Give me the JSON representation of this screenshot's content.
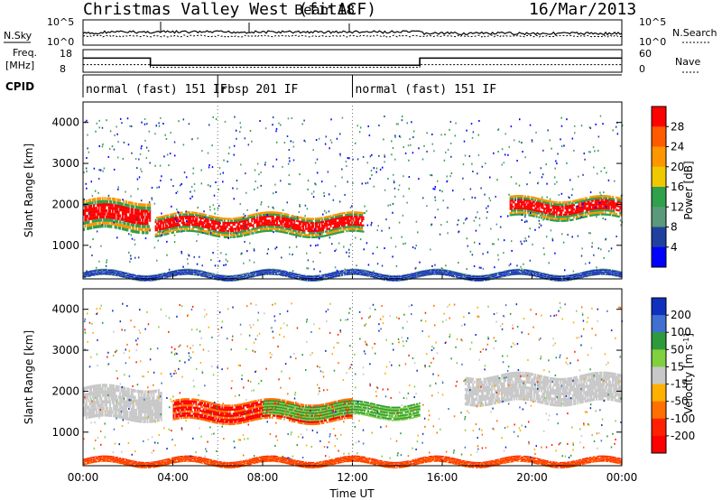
{
  "header": {
    "title": "Christmas Valley West (fitACF)",
    "beam": "Beam 18",
    "date": "16/Mar/2013"
  },
  "params": {
    "nsky_label": "N.Sky",
    "nsearch_label": "N.Search",
    "freq_label": "Freq.",
    "freq_unit": "[MHz]",
    "nave_label": "Nave",
    "cpid_label": "CPID",
    "noise_ticks": [
      "10^5",
      "10^0"
    ],
    "freq_ticks": [
      "18",
      "8"
    ],
    "nave_ticks": [
      "60",
      "0"
    ],
    "cpid_segments": [
      {
        "label": "normal (fast) 151 IF",
        "start": 0,
        "end": 6
      },
      {
        "label": "rbsp 201 IF",
        "start": 6,
        "end": 12
      },
      {
        "label": "normal (fast) 151 IF",
        "start": 12,
        "end": 24
      }
    ],
    "freq_series": [
      [
        0,
        14.5
      ],
      [
        3,
        14.5
      ],
      [
        3,
        11
      ],
      [
        15,
        11
      ],
      [
        15,
        14.5
      ],
      [
        24,
        14.5
      ]
    ],
    "nave_series": [
      [
        0,
        20
      ],
      [
        3,
        20
      ],
      [
        3,
        13
      ],
      [
        15,
        13
      ],
      [
        15,
        20
      ],
      [
        24,
        20
      ]
    ]
  },
  "chart_data": [
    {
      "type": "heatmap",
      "panel": "power",
      "xlabel": "",
      "ylabel": "Slant Range [km]",
      "xlim": [
        0,
        24
      ],
      "ylim": [
        180,
        4500
      ],
      "yticks": [
        "1000",
        "2000",
        "3000",
        "4000"
      ],
      "colorbar": {
        "label": "Power [dB]",
        "ticks": [
          "28",
          "24",
          "20",
          "16",
          "12",
          "8",
          "4"
        ],
        "colors": [
          "#ff0000",
          "#ff5a00",
          "#ff9600",
          "#f0c800",
          "#2fa04c",
          "#5a9a7a",
          "#2040a0",
          "#0000ff"
        ]
      },
      "blobs": [
        {
          "x": [
            0,
            3
          ],
          "y": [
            1350,
            2100
          ],
          "intensity": 26
        },
        {
          "x": [
            3.2,
            12.5
          ],
          "y": [
            1250,
            1750
          ],
          "intensity": 28
        },
        {
          "x": [
            19,
            24
          ],
          "y": [
            1650,
            2150
          ],
          "intensity": 24
        },
        {
          "x": [
            0,
            24
          ],
          "y": [
            200,
            350
          ],
          "intensity": 6
        }
      ]
    },
    {
      "type": "heatmap",
      "panel": "velocity",
      "xlabel": "Time UT",
      "ylabel": "Slant Range [km]",
      "xlim": [
        0,
        24
      ],
      "ylim": [
        180,
        4500
      ],
      "xticks": [
        "00:00",
        "04:00",
        "08:00",
        "12:00",
        "16:00",
        "20:00",
        "00:00"
      ],
      "yticks": [
        "1000",
        "2000",
        "3000",
        "4000"
      ],
      "colorbar": {
        "label": "Velocity [m s^-1]",
        "ticks": [
          "200",
          "100",
          "50",
          "15",
          "-15",
          "-50",
          "-100",
          "-200"
        ],
        "colors": [
          "#1030c0",
          "#4070d0",
          "#2f9a3c",
          "#80d040",
          "#c8c8c8",
          "#ffb000",
          "#ff7000",
          "#ff2000",
          "#ff0000"
        ]
      },
      "blobs": [
        {
          "x": [
            0,
            3.5
          ],
          "y": [
            1300,
            2100
          ],
          "intensity": 0
        },
        {
          "x": [
            4,
            12
          ],
          "y": [
            1250,
            1750
          ],
          "intensity": -220
        },
        {
          "x": [
            8,
            15
          ],
          "y": [
            1350,
            1700
          ],
          "intensity": 60
        },
        {
          "x": [
            17,
            24
          ],
          "y": [
            1700,
            2400
          ],
          "intensity": 0
        },
        {
          "x": [
            0,
            24
          ],
          "y": [
            200,
            350
          ],
          "intensity": -80
        }
      ]
    }
  ]
}
